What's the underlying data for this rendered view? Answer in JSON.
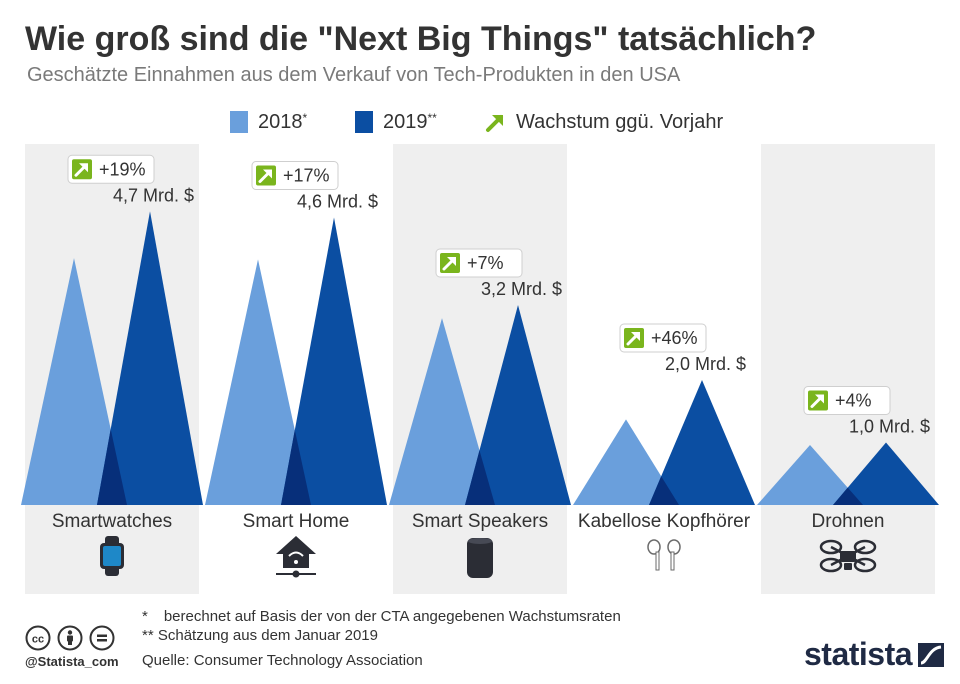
{
  "header": {
    "title": "Wie groß sind die \"Next Big Things\" tatsächlich?",
    "subtitle": "Geschätzte Einnahmen aus dem Verkauf von Tech-Produkten in den USA"
  },
  "legend": {
    "items": [
      {
        "label": "2018",
        "sup": "*"
      },
      {
        "label": "2019",
        "sup": "**"
      },
      {
        "label": "Wachstum ggü. Vorjahr",
        "sup": ""
      }
    ]
  },
  "colors": {
    "series_2018": "#6a9fdc",
    "series_2019": "#0b4ea2",
    "overlap": "#072f7a",
    "panel_bg": "#efefef",
    "growth_arrow": "#7ab51d"
  },
  "chart_data": {
    "type": "area",
    "title": "Wie groß sind die \"Next Big Things\" tatsächlich?",
    "subtitle": "Geschätzte Einnahmen aus dem Verkauf von Tech-Produkten in den USA",
    "categories": [
      "Smartwatches",
      "Smart Home",
      "Smart Speakers",
      "Kabellose Kopfhörer",
      "Drohnen"
    ],
    "series": [
      {
        "name": "2018",
        "values": [
          3.95,
          3.93,
          2.99,
          1.37,
          0.96
        ]
      },
      {
        "name": "2019",
        "values": [
          4.7,
          4.6,
          3.2,
          2.0,
          1.0
        ]
      }
    ],
    "value_labels": [
      "4,7 Mrd. $",
      "4,6 Mrd. $",
      "3,2 Mrd. $",
      "2,0 Mrd. $",
      "1,0 Mrd. $"
    ],
    "growth_labels": [
      "+19%",
      "+17%",
      "+7%",
      "+46%",
      "+4%"
    ],
    "unit": "Mrd. $",
    "ylim": [
      0,
      4.8
    ],
    "grid": false,
    "legend_position": "top-center"
  },
  "footer": {
    "note1_mark": "*",
    "note1_text": "berechnet auf Basis der von der CTA angegebenen Wachstumsraten",
    "note2": "** Schätzung aus dem Januar 2019",
    "source": "Quelle: Consumer Technology Association",
    "handle": "@Statista_com",
    "brand": "statista",
    "cc_icons": [
      "creative-commons-icon",
      "attribution-icon",
      "no-derivatives-icon"
    ]
  }
}
